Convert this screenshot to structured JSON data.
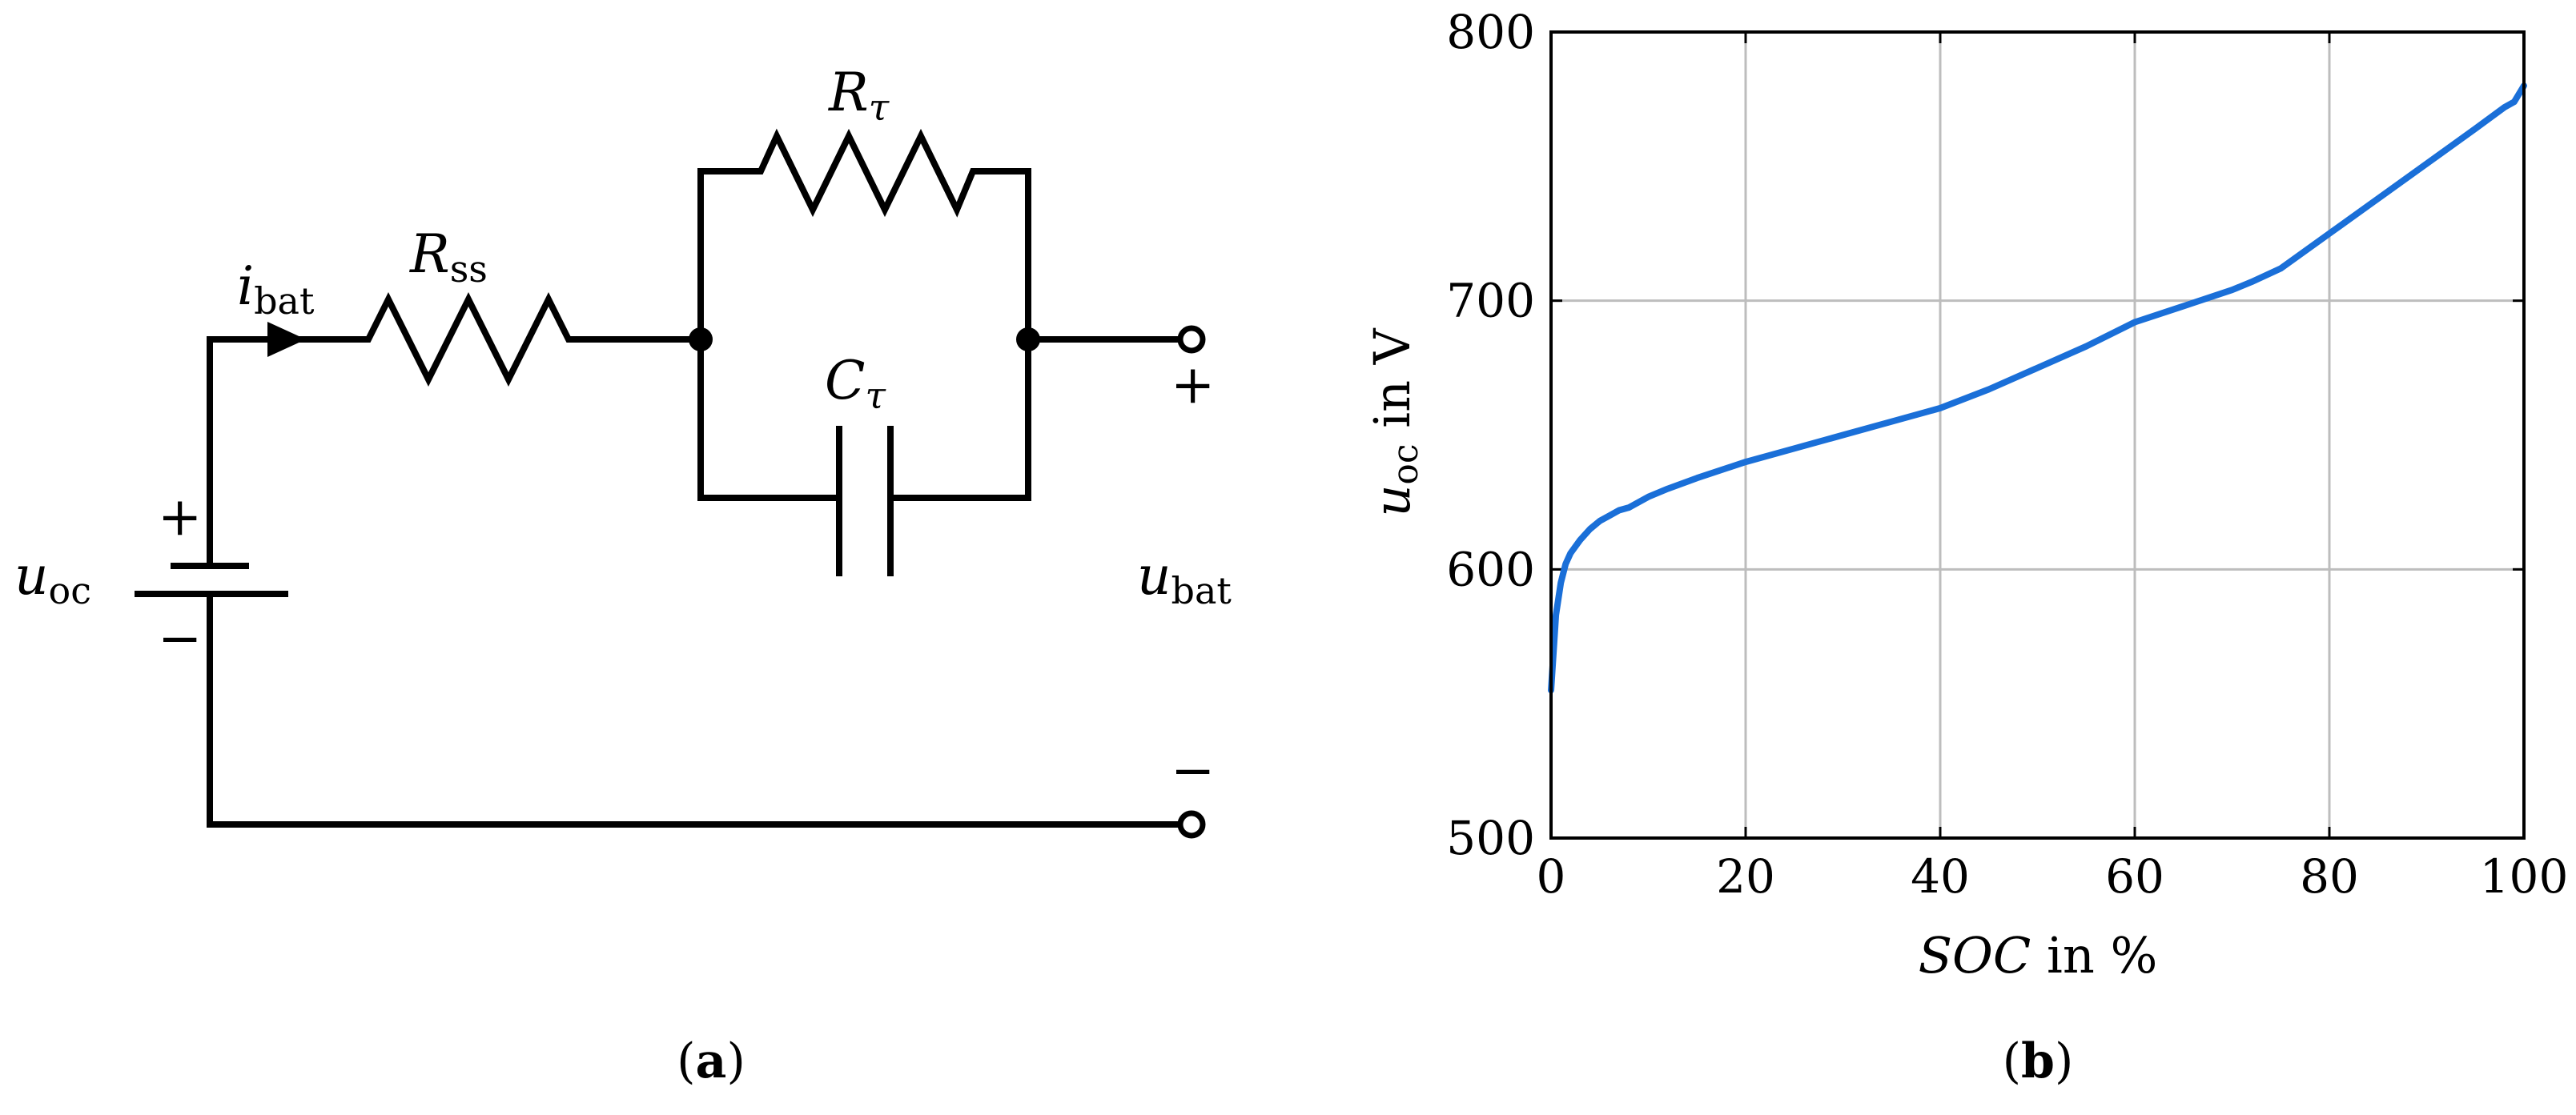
{
  "circuit": {
    "label_R_tau_main": "R",
    "label_R_tau_sub": "τ",
    "label_R_ss_main": "R",
    "label_R_ss_sub": "ss",
    "label_C_tau_main": "C",
    "label_C_tau_sub": "τ",
    "label_i_bat_main": "i",
    "label_i_bat_sub": "bat",
    "label_u_oc_main": "u",
    "label_u_oc_sub": "oc",
    "label_u_bat_main": "u",
    "label_u_bat_sub": "bat",
    "plus_sign": "+",
    "minus_sign": "−"
  },
  "captions": {
    "a_open": "(",
    "a_letter": "a",
    "a_close": ")",
    "b_open": "(",
    "b_letter": "b",
    "b_close": ")"
  },
  "chart_data": {
    "type": "line",
    "xlabel_italic": "SOC",
    "xlabel_rest": " in %",
    "ylabel_main": "u",
    "ylabel_sub": "oc",
    "ylabel_rest": " in V",
    "xlim": [
      0,
      100
    ],
    "ylim": [
      500,
      800
    ],
    "xticks": [
      0,
      20,
      40,
      60,
      80,
      100
    ],
    "yticks": [
      500,
      600,
      700,
      800
    ],
    "grid": true,
    "line_color": "#1a6fd8",
    "series": [
      {
        "x": [
          0,
          0.5,
          1,
          1.5,
          2,
          3,
          4,
          5,
          6,
          7,
          8,
          10,
          12,
          15,
          20,
          25,
          30,
          35,
          40,
          45,
          50,
          55,
          60,
          65,
          70,
          72,
          75,
          80,
          85,
          90,
          95,
          98,
          99,
          100
        ],
        "y": [
          555,
          583,
          595,
          602,
          606,
          611,
          615,
          618,
          620,
          622,
          623,
          627,
          630,
          634,
          640,
          645,
          650,
          655,
          660,
          667,
          675,
          683,
          692,
          698,
          704,
          707,
          712,
          725,
          738,
          751,
          764,
          772,
          774,
          780
        ]
      }
    ]
  }
}
